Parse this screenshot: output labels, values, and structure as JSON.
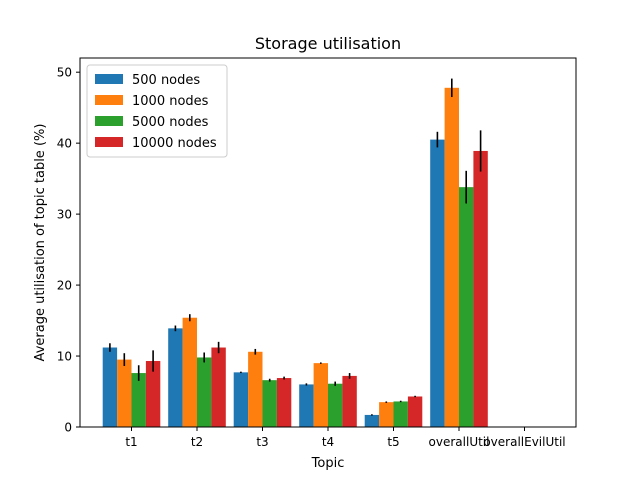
{
  "chart_data": {
    "type": "bar",
    "title": "Storage utilisation",
    "xlabel": "Topic",
    "ylabel": "Average utilisation of topic table (%)",
    "categories": [
      "t1",
      "t2",
      "t3",
      "t4",
      "t5",
      "overallUtil",
      "overallEvilUtil"
    ],
    "ylim": [
      0,
      52
    ],
    "yticks": [
      0,
      10,
      20,
      30,
      40,
      50
    ],
    "grid": false,
    "legend_position": "top-left",
    "series": [
      {
        "name": "500 nodes",
        "color": "#1f77b4",
        "values": [
          11.2,
          13.9,
          7.7,
          6.0,
          1.7,
          40.5,
          0
        ],
        "errors": [
          0.6,
          0.4,
          0.1,
          0.15,
          0.1,
          1.1,
          0
        ]
      },
      {
        "name": "1000 nodes",
        "color": "#ff7f0e",
        "values": [
          9.5,
          15.4,
          10.6,
          9.0,
          3.5,
          47.8,
          0
        ],
        "errors": [
          0.9,
          0.5,
          0.4,
          0.1,
          0.1,
          1.3,
          0
        ]
      },
      {
        "name": "5000 nodes",
        "color": "#2ca02c",
        "values": [
          7.6,
          9.8,
          6.6,
          6.1,
          3.6,
          33.8,
          0
        ],
        "errors": [
          1.1,
          0.7,
          0.2,
          0.3,
          0.1,
          2.3,
          0
        ]
      },
      {
        "name": "10000 nodes",
        "color": "#d62728",
        "values": [
          9.3,
          11.2,
          6.9,
          7.2,
          4.3,
          38.9,
          0
        ],
        "errors": [
          1.5,
          0.8,
          0.2,
          0.4,
          0.1,
          2.9,
          0
        ]
      }
    ]
  }
}
